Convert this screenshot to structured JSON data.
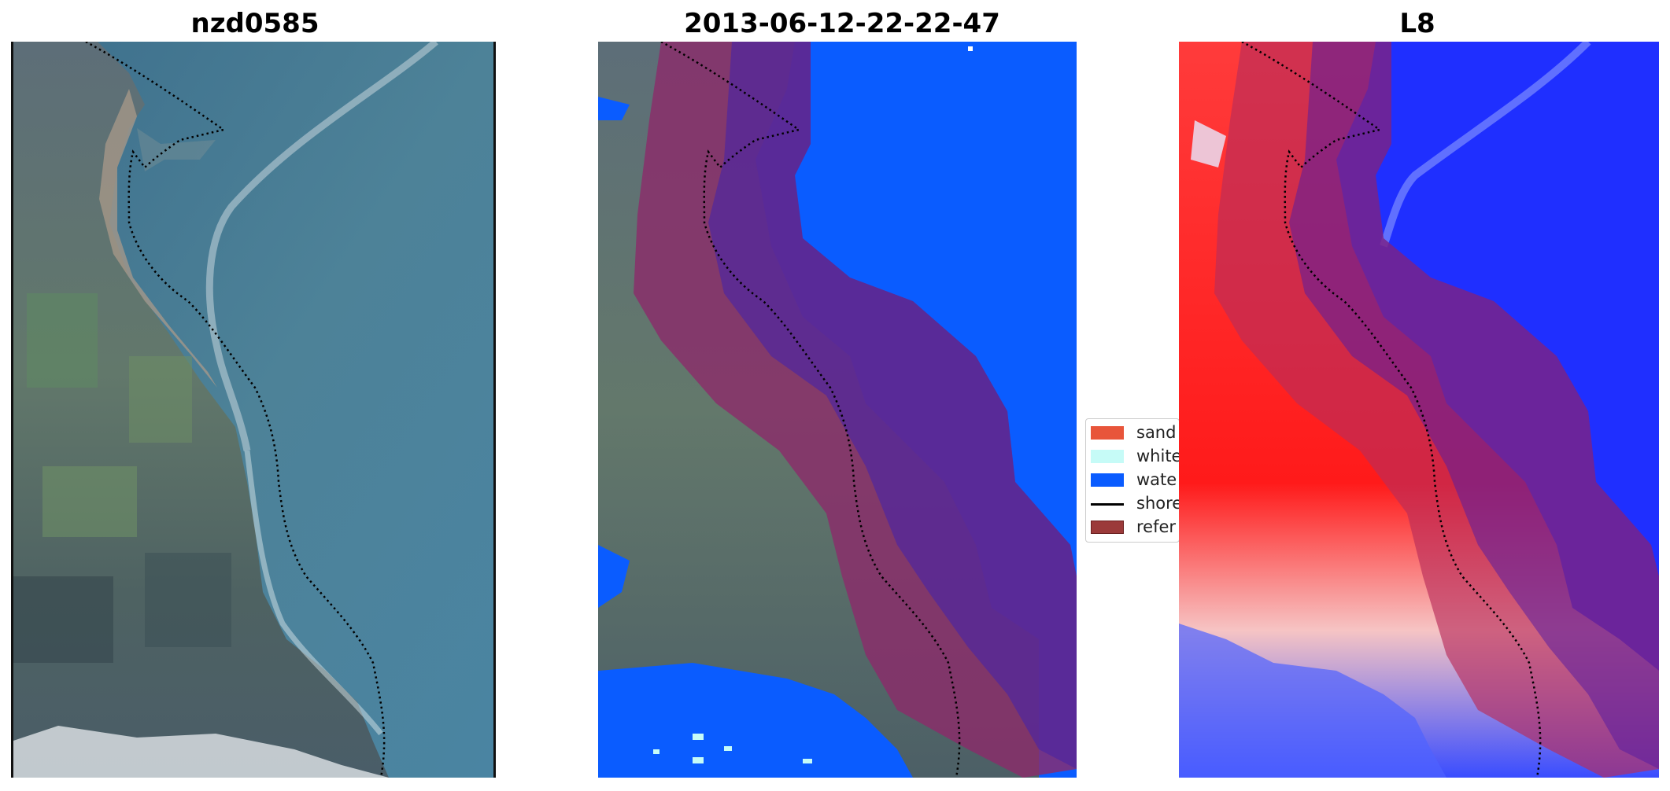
{
  "panels": [
    {
      "title": "nzd0585",
      "view": "true-color"
    },
    {
      "title": "2013-06-12-22-22-47",
      "view": "classification"
    },
    {
      "title": "L8",
      "view": "index"
    }
  ],
  "legend": {
    "items": [
      {
        "label": "sand",
        "color": "#e8553a",
        "kind": "patch"
      },
      {
        "label": "white",
        "color": "#c6fbf7",
        "kind": "patch"
      },
      {
        "label": "wate",
        "color": "#0a5cff",
        "kind": "patch"
      },
      {
        "label": "shore",
        "color": "#000000",
        "kind": "line"
      },
      {
        "label": "refer",
        "color": "#9b3a3a",
        "kind": "patch"
      }
    ]
  },
  "colors": {
    "ocean": "#4a7e9a",
    "ocean_deep": "#3f6f8b",
    "land": "#5a6f6a",
    "water_class": "#0a5cff",
    "buffer": "#8c2a6a",
    "index_land": "#ff2020",
    "index_water": "#1f2fff"
  }
}
